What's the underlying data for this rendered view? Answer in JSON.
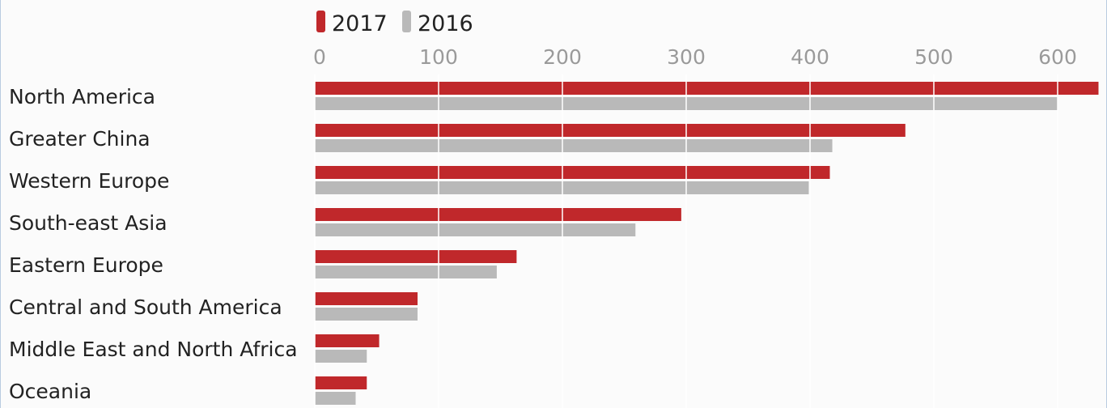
{
  "chart_data": {
    "type": "bar",
    "orientation": "horizontal",
    "categories": [
      "North America",
      "Greater China",
      "Western Europe",
      "South-east Asia",
      "Eastern Europe",
      "Central and South America",
      "Middle East and North Africa",
      "Oceania"
    ],
    "series": [
      {
        "name": "2017",
        "color": "#c0282b",
        "values": [
          633,
          477,
          416,
          296,
          163,
          83,
          52,
          42
        ]
      },
      {
        "name": "2016",
        "color": "#b9b9b9",
        "values": [
          600,
          418,
          399,
          259,
          147,
          83,
          42,
          33
        ]
      }
    ],
    "xticks": [
      0,
      100,
      200,
      300,
      400,
      500,
      600
    ],
    "xlim": [
      0,
      640
    ],
    "legend_position": "top",
    "xaxis_position": "top",
    "grid": true
  }
}
